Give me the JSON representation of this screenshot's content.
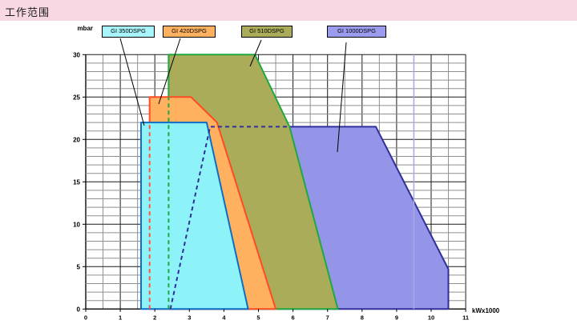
{
  "page": {
    "title": "工作范围",
    "header_bg": "#f8d8e3"
  },
  "chart_data": {
    "type": "area",
    "title": "工作范围",
    "xlabel": "kWx1000",
    "ylabel": "mbar",
    "xlim": [
      0,
      11
    ],
    "ylim": [
      0,
      30
    ],
    "x_ticks": [
      0,
      1,
      2,
      3,
      4,
      5,
      6,
      7,
      8,
      9,
      10,
      11
    ],
    "y_ticks": [
      0,
      5,
      10,
      15,
      20,
      25,
      30
    ],
    "grid": {
      "x_minor_step": 0.5,
      "x_major_step": 1,
      "y_minor_step": 1,
      "y_major_step": 5,
      "minor_color": "#8f8f8f",
      "major_color": "#1a1a1a"
    },
    "series": [
      {
        "name": "GI 350DSPG",
        "fill": "#8ef3f8",
        "stroke": "#0c6ec8",
        "points": [
          [
            1.6,
            0
          ],
          [
            1.6,
            22
          ],
          [
            3.5,
            22
          ],
          [
            4.7,
            0
          ]
        ]
      },
      {
        "name": "GI 420DSPG",
        "fill": "#ffb160",
        "stroke": "#ff4b24",
        "points": [
          [
            1.85,
            0
          ],
          [
            1.85,
            25
          ],
          [
            3.05,
            25
          ],
          [
            3.8,
            22
          ],
          [
            5.5,
            0
          ]
        ]
      },
      {
        "name": "GI 510DSPG",
        "fill": "#abac5a",
        "stroke": "#1ea83e",
        "points": [
          [
            2.4,
            0
          ],
          [
            2.4,
            30
          ],
          [
            4.9,
            30
          ],
          [
            5.9,
            21.5
          ],
          [
            7.3,
            0
          ]
        ]
      },
      {
        "name": "GI 1000DSPG",
        "fill": "#9495e8",
        "stroke": "#30309a",
        "points": [
          [
            2.45,
            0
          ],
          [
            3.6,
            21.5
          ],
          [
            8.4,
            21.5
          ],
          [
            10.5,
            4.7
          ],
          [
            10.5,
            0
          ]
        ]
      }
    ],
    "hidden_edge_overlays": [
      {
        "series": "GI 420DSPG",
        "color": "#ff5540",
        "points": [
          [
            1.85,
            0
          ],
          [
            1.85,
            25
          ]
        ]
      },
      {
        "series": "GI 510DSPG",
        "color": "#1ea83e",
        "points": [
          [
            2.4,
            0
          ],
          [
            2.4,
            25
          ]
        ]
      },
      {
        "series": "GI 1000DSPG",
        "color": "#30309a",
        "points": [
          [
            2.45,
            0
          ],
          [
            3.6,
            21.5
          ],
          [
            5.9,
            21.5
          ]
        ]
      }
    ],
    "reference_line": {
      "x": 9.5,
      "color": "#a9a9e6"
    },
    "legend": {
      "position": "top",
      "items": [
        {
          "label": "GI 350DSPG",
          "fill": "#a8f6fb",
          "pointer": [
            150,
            48,
            180,
            157
          ]
        },
        {
          "label": "GI 420DSPG",
          "fill": "#ffb160",
          "pointer": [
            225,
            48,
            198,
            130
          ]
        },
        {
          "label": "GI 510DSPG",
          "fill": "#abac5a",
          "pointer": [
            326,
            50,
            312,
            83
          ]
        },
        {
          "label": "GI 1000DSPG",
          "fill": "#9b9bf0",
          "pointer": [
            432,
            53,
            421,
            190
          ]
        }
      ]
    }
  }
}
